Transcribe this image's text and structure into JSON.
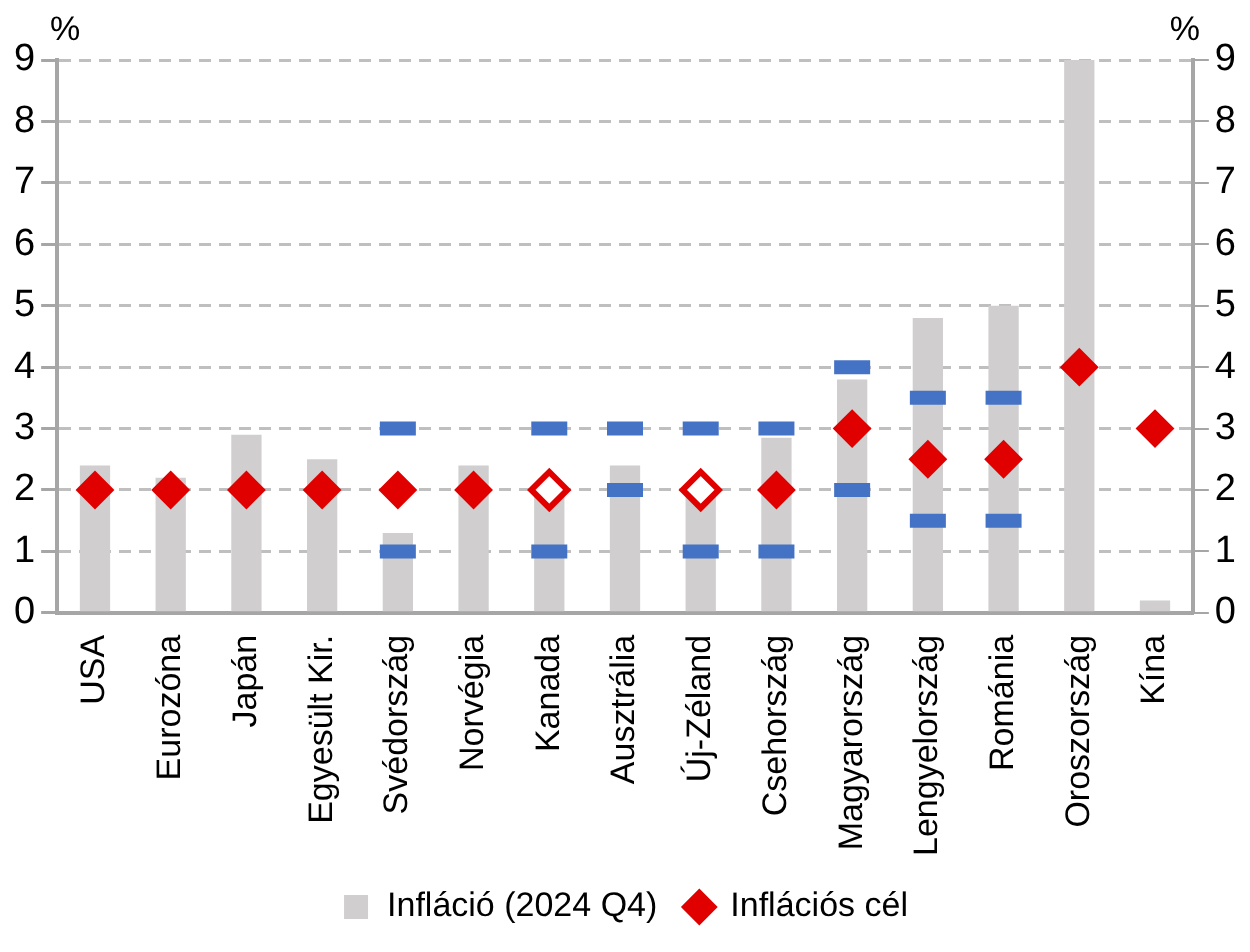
{
  "chart_data": {
    "type": "bar",
    "annotations": [
      "%",
      "%"
    ],
    "categories": [
      "USA",
      "Eurozóna",
      "Japán",
      "Egyesült Kir.",
      "Svédország",
      "Norvégia",
      "Kanada",
      "Ausztrália",
      "Új-Zéland",
      "Csehország",
      "Magyarország",
      "Lengyelország",
      "Románia",
      "Oroszország",
      "Kína"
    ],
    "series": [
      {
        "name": "Infláció (2024 Q4)",
        "color": "#d0cece",
        "values": [
          2.4,
          2.2,
          2.9,
          2.5,
          1.3,
          2.4,
          1.9,
          2.4,
          1.9,
          2.85,
          3.8,
          4.8,
          5.0,
          9.0,
          0.2
        ]
      },
      {
        "type": "scatter",
        "color": "#4472c4",
        "values": [
          null,
          null,
          null,
          null,
          3,
          null,
          3,
          3,
          3,
          3,
          4,
          3.5,
          3.5,
          null,
          null
        ]
      },
      {
        "type": "scatter",
        "color": "#4472c4",
        "values": [
          null,
          null,
          null,
          null,
          1,
          null,
          1,
          2,
          1,
          1,
          2,
          1.5,
          1.5,
          null,
          null
        ]
      },
      {
        "name": "Inflációs cél",
        "type": "scatter",
        "marker": "diamond",
        "color": "#e00000",
        "values": [
          2,
          2,
          2,
          2,
          2,
          2,
          null,
          null,
          null,
          2,
          3,
          2.5,
          2.5,
          4,
          3
        ]
      },
      {
        "type": "scatter",
        "marker": "diamond",
        "color": "#e00000",
        "values": [
          null,
          null,
          null,
          null,
          null,
          null,
          2,
          null,
          2,
          null,
          null,
          null,
          null,
          null,
          null
        ]
      }
    ],
    "ylim": [
      0,
      9
    ],
    "yticks": [
      0,
      1,
      2,
      3,
      4,
      5,
      6,
      7,
      8,
      9
    ],
    "y2lim": [
      0,
      9
    ],
    "y2ticks": [
      0,
      1,
      2,
      3,
      4,
      5,
      6,
      7,
      8,
      9
    ],
    "grid": "y",
    "legend": "bottom"
  }
}
